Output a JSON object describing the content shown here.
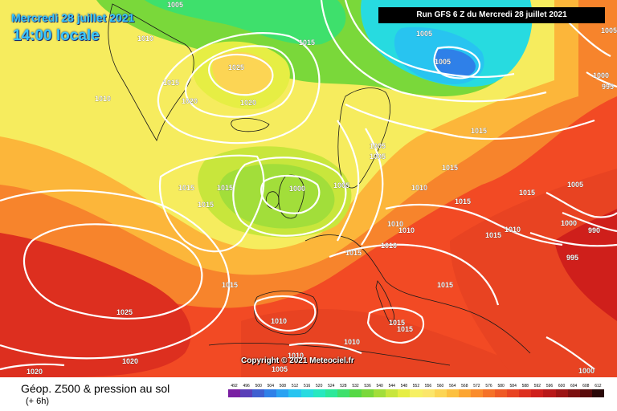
{
  "header": {
    "date_line": "Mercredi 28 juillet 2021",
    "time_line": "14:00 locale",
    "run_info": "Run GFS 6 Z du Mercredi 28 juillet 2021"
  },
  "copyright": "Copyright © 2021 Meteociel.fr",
  "footer": {
    "product_title": "Géop. Z500 & pression au sol",
    "product_subtitle": "(+ 6h)"
  },
  "color_scale": {
    "labels": [
      "492",
      "496",
      "500",
      "504",
      "508",
      "512",
      "516",
      "520",
      "524",
      "528",
      "532",
      "536",
      "540",
      "544",
      "548",
      "552",
      "556",
      "560",
      "564",
      "568",
      "572",
      "576",
      "580",
      "584",
      "588",
      "592",
      "596",
      "600",
      "604",
      "608",
      "612"
    ],
    "colors": [
      "#7a1fa2",
      "#5a3fb8",
      "#3f5fd0",
      "#2f80e8",
      "#2aa2f2",
      "#28c4f0",
      "#27dbe0",
      "#27e8c0",
      "#2ce89a",
      "#3ee06c",
      "#55d845",
      "#7ad83a",
      "#a2de3a",
      "#c8e63c",
      "#e6ee44",
      "#f6f064",
      "#fbe66a",
      "#fcd554",
      "#fcc040",
      "#fca532",
      "#fa8c2c",
      "#f57228",
      "#ef5a25",
      "#e84322",
      "#dd2f1f",
      "#cf1f1b",
      "#b81818",
      "#9c1414",
      "#7c1010",
      "#5a0c0c",
      "#2a0808"
    ]
  },
  "pressure_labels": [
    {
      "text": "1005"
    },
    {
      "text": "1010"
    },
    {
      "text": "1015"
    },
    {
      "text": "1025"
    },
    {
      "text": "1020"
    },
    {
      "text": "1010"
    },
    {
      "text": "1015"
    },
    {
      "text": "1020"
    },
    {
      "text": "1005"
    },
    {
      "text": "1005"
    },
    {
      "text": "1015"
    },
    {
      "text": "1000"
    },
    {
      "text": "995"
    },
    {
      "text": "1015"
    },
    {
      "text": "1015"
    },
    {
      "text": "1015"
    },
    {
      "text": "1000"
    },
    {
      "text": "1015"
    },
    {
      "text": "1005"
    },
    {
      "text": "1005"
    },
    {
      "text": "1005"
    },
    {
      "text": "1010"
    },
    {
      "text": "1015"
    },
    {
      "text": "1015"
    },
    {
      "text": "1005"
    },
    {
      "text": "1010"
    },
    {
      "text": "1010"
    },
    {
      "text": "1015"
    },
    {
      "text": "1010"
    },
    {
      "text": "1000"
    },
    {
      "text": "990"
    },
    {
      "text": "995"
    },
    {
      "text": "1015"
    },
    {
      "text": "1015"
    },
    {
      "text": "1010"
    },
    {
      "text": "1015"
    },
    {
      "text": "1015"
    },
    {
      "text": "1010"
    },
    {
      "text": "1005"
    },
    {
      "text": "1025"
    },
    {
      "text": "1020"
    },
    {
      "text": "1020"
    },
    {
      "text": "1010"
    },
    {
      "text": "1010"
    },
    {
      "text": "1000"
    },
    {
      "text": "1005"
    },
    {
      "text": "1015"
    }
  ]
}
